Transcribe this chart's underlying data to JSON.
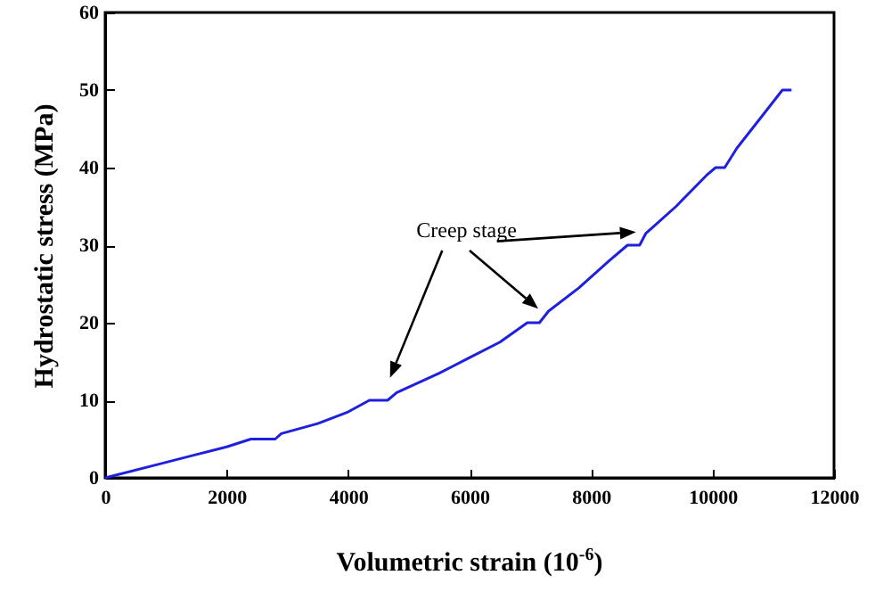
{
  "chart_data": {
    "type": "line",
    "xlabel": "Volumetric strain (10$^{-6}$)",
    "ylabel": "Hydrostatic stress  (MPa)",
    "annotations": [
      "Creep stage"
    ],
    "x": [
      0,
      900,
      1500,
      2000,
      2400,
      2800,
      2900,
      3500,
      4000,
      4350,
      4650,
      4800,
      5500,
      6000,
      6500,
      6950,
      7150,
      7300,
      7800,
      8300,
      8600,
      8800,
      8900,
      9400,
      9900,
      10050,
      10200,
      10400,
      10800,
      11150,
      11300
    ],
    "series": [
      {
        "color": "#1f1fe0",
        "values": [
          0,
          1.8,
          3,
          4,
          5,
          5,
          5.7,
          7,
          8.5,
          10,
          10,
          11,
          13.5,
          15.5,
          17.5,
          20,
          20,
          21.5,
          24.5,
          28,
          30,
          30,
          31.5,
          35,
          39,
          40,
          40,
          42.5,
          46.5,
          50,
          50
        ]
      }
    ],
    "xlim": [
      0,
      12000
    ],
    "ylim": [
      0,
      60
    ],
    "xticks": [
      0,
      2000,
      4000,
      6000,
      8000,
      10000,
      12000
    ],
    "yticks": [
      0,
      10,
      20,
      30,
      40,
      50,
      60
    ],
    "grid": false,
    "marker": "none",
    "line_style": "solid"
  }
}
